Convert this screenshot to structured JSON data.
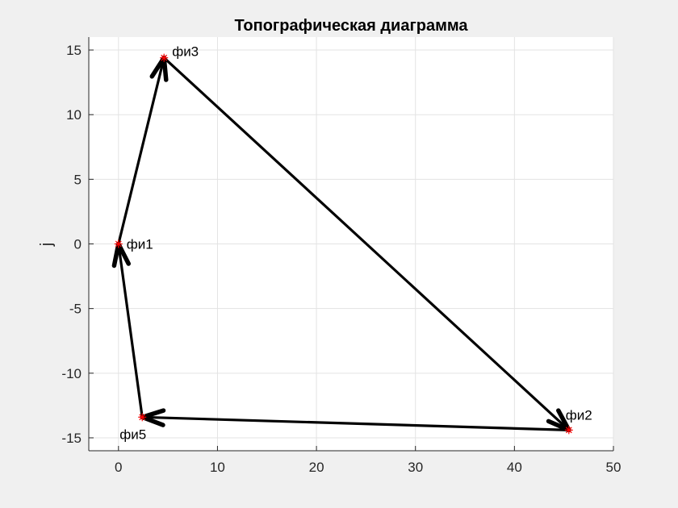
{
  "chart_data": {
    "type": "line",
    "title": "Топографическая диаграмма",
    "xlabel": "",
    "ylabel": "j",
    "xlim": [
      -3,
      50
    ],
    "ylim": [
      -16,
      16
    ],
    "xticks": [
      0,
      10,
      20,
      30,
      40,
      50
    ],
    "yticks": [
      -15,
      -10,
      -5,
      0,
      5,
      10,
      15
    ],
    "grid": true,
    "points": [
      {
        "label": "фи1",
        "x": 0,
        "y": 0
      },
      {
        "label": "фи3",
        "x": 4.6,
        "y": 14.4
      },
      {
        "label": "фи2",
        "x": 45.5,
        "y": -14.4
      },
      {
        "label": "фи5",
        "x": 2.4,
        "y": -13.4
      }
    ],
    "arrows": [
      {
        "from": "фи1",
        "to": "фи3"
      },
      {
        "from": "фи3",
        "to": "фи2"
      },
      {
        "from": "фи2",
        "to": "фи5"
      },
      {
        "from": "фи5",
        "to": "фи1"
      }
    ],
    "marker_color": "#ff0000",
    "line_color": "#000000"
  }
}
